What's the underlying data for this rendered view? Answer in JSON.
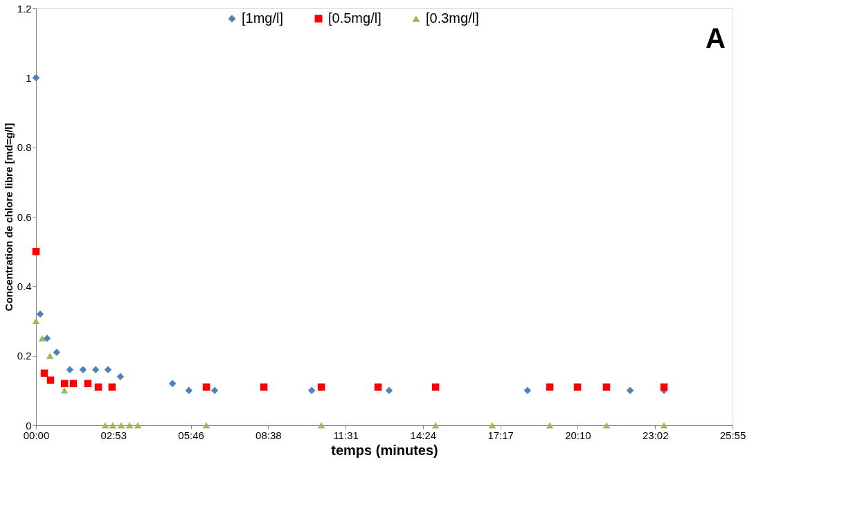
{
  "chart_data": {
    "type": "scatter",
    "xlabel": "temps (minutes)",
    "ylabel": "Concentration de chlore libre [md=g/l]",
    "annotations": [
      "A"
    ],
    "xlim": [
      0,
      25.92
    ],
    "xticks": [
      {
        "value": 0,
        "label": "00:00"
      },
      {
        "value": 2.88,
        "label": "02:53"
      },
      {
        "value": 5.76,
        "label": "05:46"
      },
      {
        "value": 8.64,
        "label": "08:38"
      },
      {
        "value": 11.52,
        "label": "11:31"
      },
      {
        "value": 14.4,
        "label": "14:24"
      },
      {
        "value": 17.28,
        "label": "17:17"
      },
      {
        "value": 20.16,
        "label": "20:10"
      },
      {
        "value": 23.04,
        "label": "23:02"
      },
      {
        "value": 25.92,
        "label": "25:55"
      }
    ],
    "ylim": [
      0,
      1.2
    ],
    "yticks": [
      0,
      0.2,
      0.4,
      0.6,
      0.8,
      1,
      1.2
    ],
    "grid": false,
    "legend": "top",
    "series": [
      {
        "name": "[1mg/l]",
        "color": "#4f81bd",
        "marker": "diamond",
        "x": [
          0,
          0.155,
          0.41,
          0.77,
          1.26,
          1.75,
          2.22,
          2.68,
          3.14,
          5.08,
          5.69,
          6.65,
          10.26,
          13.14,
          18.29,
          22.11,
          23.37
        ],
        "values": [
          1.0,
          0.32,
          0.25,
          0.21,
          0.16,
          0.16,
          0.16,
          0.16,
          0.14,
          0.12,
          0.1,
          0.1,
          0.1,
          0.1,
          0.1,
          0.1,
          0.1
        ]
      },
      {
        "name": "[0.5mg/l]",
        "color": "#ff0000",
        "marker": "square",
        "x": [
          0,
          0.31,
          0.54,
          1.06,
          1.39,
          1.93,
          2.32,
          2.83,
          6.34,
          8.48,
          10.62,
          12.73,
          14.87,
          19.12,
          20.15,
          21.23,
          23.37
        ],
        "values": [
          0.5,
          0.15,
          0.13,
          0.12,
          0.12,
          0.12,
          0.11,
          0.11,
          0.11,
          0.11,
          0.11,
          0.11,
          0.11,
          0.11,
          0.11,
          0.11,
          0.11
        ]
      },
      {
        "name": "[0.3mg/l]",
        "color": "#9bbb59",
        "marker": "triangle",
        "x": [
          0,
          0.23,
          0.52,
          1.06,
          2.58,
          2.86,
          3.17,
          3.48,
          3.79,
          6.34,
          10.62,
          14.87,
          16.98,
          19.12,
          21.23,
          23.37
        ],
        "values": [
          0.3,
          0.25,
          0.2,
          0.1,
          0,
          0,
          0,
          0,
          0,
          0,
          0,
          0,
          0,
          0,
          0,
          0
        ]
      }
    ]
  }
}
